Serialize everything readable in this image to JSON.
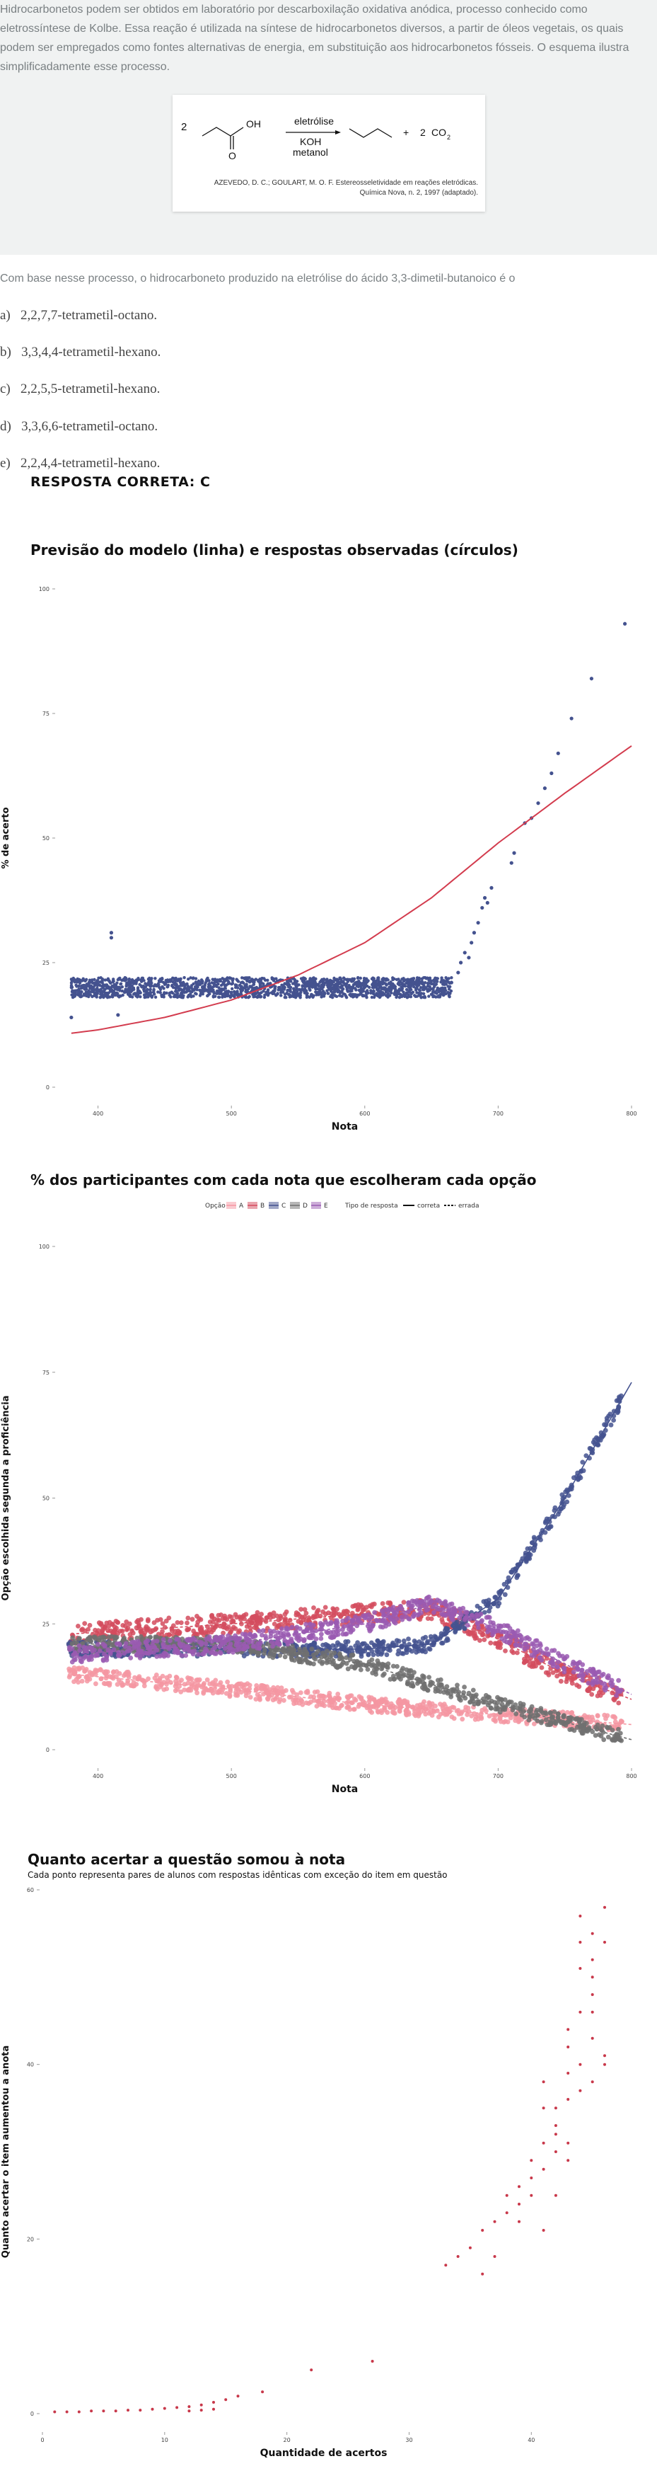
{
  "question": {
    "intro": "Hidrocarbonetos podem ser obtidos em laboratório por descarboxilação oxidativa anódica, processo conhecido como eletrossíntese de Kolbe. Essa reação é utilizada na síntese de hidrocarbonetos diversos, a partir de óleos vegetais, os quais podem ser empregados como fontes alternativas de energia, em substituição aos hidrocarbonetos fósseis. O esquema ilustra simplificadamente esse processo.",
    "scheme": {
      "coef_left": "2",
      "oh": "OH",
      "o": "O",
      "arrow_top": "eletrólise",
      "arrow_bottom_1": "KOH",
      "arrow_bottom_2": "metanol",
      "plus": "+",
      "coef_co2": "2",
      "co2": "CO",
      "co2_sub": "2",
      "citation_1": "AZEVEDO, D. C.; GOULART, M. O. F. Estereosseletividade em reações eletródicas.",
      "citation_2": "Química Nova, n. 2, 1997 (adaptado)."
    },
    "stem": "Com base nesse processo, o hidrocarboneto produzido na eletrólise do ácido 3,3-dimetil-butanoico é o",
    "options": [
      {
        "letter": "a)",
        "text": "2,2,7,7-tetrametil-octano."
      },
      {
        "letter": "b)",
        "text": "3,3,4,4-tetrametil-hexano."
      },
      {
        "letter": "c)",
        "text": "2,2,5,5-tetrametil-hexano."
      },
      {
        "letter": "d)",
        "text": "3,3,6,6-tetrametil-octano."
      },
      {
        "letter": "e)",
        "text": "2,2,4,4-tetrametil-hexano."
      }
    ],
    "answer": "RESPOSTA CORRETA: C"
  },
  "colors": {
    "A": "#f596a2",
    "B": "#d44c5e",
    "C": "#44528f",
    "D": "#707070",
    "E": "#9a5bb2",
    "model": "#d33c4e",
    "points": "#44528f",
    "chart3": "#c8384a"
  },
  "chart_data": [
    {
      "type": "scatter",
      "title": "Previsão do modelo (linha) e respostas observadas (círculos)",
      "xlabel": "Nota",
      "ylabel": "% de acerto",
      "xlim": [
        370,
        800
      ],
      "ylim": [
        0,
        100
      ],
      "xticks": [
        400,
        500,
        600,
        700,
        800
      ],
      "yticks": [
        0,
        25,
        50,
        75,
        100
      ],
      "series": [
        {
          "kind": "line",
          "points": [
            [
              370,
              10.5
            ],
            [
              400,
              11.5
            ],
            [
              450,
              14
            ],
            [
              500,
              17.5
            ],
            [
              550,
              22.5
            ],
            [
              600,
              29
            ],
            [
              650,
              38
            ],
            [
              700,
              49
            ],
            [
              750,
              59
            ],
            [
              800,
              68.5
            ]
          ]
        },
        {
          "kind": "points",
          "band": {
            "x": [
              380,
              665
            ],
            "level": 20,
            "spread": 4
          },
          "points": [
            [
              380,
              14
            ],
            [
              410,
              31
            ],
            [
              410,
              30
            ],
            [
              415,
              14.5
            ],
            [
              665,
              21
            ],
            [
              670,
              23
            ],
            [
              672,
              25
            ],
            [
              675,
              27
            ],
            [
              678,
              26
            ],
            [
              680,
              29
            ],
            [
              682,
              31
            ],
            [
              685,
              33
            ],
            [
              688,
              36
            ],
            [
              690,
              38
            ],
            [
              692,
              37
            ],
            [
              695,
              40
            ],
            [
              710,
              45
            ],
            [
              712,
              47
            ],
            [
              720,
              53
            ],
            [
              725,
              54
            ],
            [
              730,
              57
            ],
            [
              735,
              60
            ],
            [
              740,
              63
            ],
            [
              745,
              67
            ],
            [
              755,
              74
            ],
            [
              770,
              82
            ],
            [
              795,
              93
            ]
          ]
        }
      ]
    },
    {
      "type": "scatter",
      "title": "% dos participantes com cada nota que escolheram cada opção",
      "xlabel": "Nota",
      "ylabel": "Opção escolhida segunda a proficiência",
      "xlim": [
        370,
        800
      ],
      "ylim": [
        0,
        100
      ],
      "xticks": [
        400,
        500,
        600,
        700,
        800
      ],
      "yticks": [
        0,
        25,
        50,
        75,
        100
      ],
      "legend": {
        "option_label": "Opção",
        "options": [
          "A",
          "B",
          "C",
          "D",
          "E"
        ],
        "type_label": "Tipo de resposta",
        "types": [
          "correta",
          "errada"
        ],
        "position": "top"
      },
      "series": [
        {
          "name": "A",
          "points": [
            [
              380,
              15
            ],
            [
              500,
              12
            ],
            [
              600,
              9
            ],
            [
              700,
              7
            ],
            [
              800,
              5
            ]
          ]
        },
        {
          "name": "B",
          "points": [
            [
              380,
              23
            ],
            [
              500,
              25
            ],
            [
              600,
              27
            ],
            [
              650,
              28
            ],
            [
              700,
              22
            ],
            [
              750,
              15
            ],
            [
              800,
              10
            ]
          ]
        },
        {
          "name": "C",
          "points": [
            [
              380,
              20
            ],
            [
              500,
              20
            ],
            [
              600,
              20
            ],
            [
              650,
              21
            ],
            [
              700,
              30
            ],
            [
              750,
              50
            ],
            [
              800,
              73
            ]
          ]
        },
        {
          "name": "D",
          "points": [
            [
              380,
              21
            ],
            [
              500,
              21
            ],
            [
              600,
              17
            ],
            [
              700,
              9
            ],
            [
              800,
              2
            ]
          ]
        },
        {
          "name": "E",
          "points": [
            [
              380,
              19
            ],
            [
              500,
              21
            ],
            [
              600,
              25
            ],
            [
              650,
              29
            ],
            [
              700,
              24
            ],
            [
              750,
              17
            ],
            [
              800,
              11
            ]
          ]
        }
      ]
    },
    {
      "type": "scatter",
      "title": "Quanto acertar a questão somou à nota",
      "subtitle": "Cada ponto representa pares de alunos com respostas idênticas com exceção do item em questão",
      "xlabel": "Quantidade de acertos",
      "ylabel": "Quanto acertar o item aumentou a anota",
      "xlim": [
        0,
        46
      ],
      "ylim": [
        0,
        60
      ],
      "xticks": [
        0,
        10,
        20,
        30,
        40
      ],
      "yticks": [
        0,
        20,
        40,
        60
      ],
      "points": [
        [
          1,
          0.2
        ],
        [
          2,
          0.2
        ],
        [
          3,
          0.2
        ],
        [
          4,
          0.3
        ],
        [
          5,
          0.3
        ],
        [
          6,
          0.3
        ],
        [
          7,
          0.4
        ],
        [
          8,
          0.4
        ],
        [
          9,
          0.5
        ],
        [
          10,
          0.6
        ],
        [
          11,
          0.7
        ],
        [
          12,
          0.8
        ],
        [
          12,
          0.3
        ],
        [
          13,
          1
        ],
        [
          13,
          0.4
        ],
        [
          14,
          1.3
        ],
        [
          14,
          0.5
        ],
        [
          15,
          1.6
        ],
        [
          16,
          2
        ],
        [
          18,
          2.5
        ],
        [
          22,
          5
        ],
        [
          27,
          6
        ],
        [
          33,
          17
        ],
        [
          34,
          18
        ],
        [
          35,
          19
        ],
        [
          36,
          21
        ],
        [
          36,
          16
        ],
        [
          37,
          22
        ],
        [
          37,
          18
        ],
        [
          38,
          23
        ],
        [
          38,
          25
        ],
        [
          39,
          24
        ],
        [
          39,
          22
        ],
        [
          39,
          26
        ],
        [
          40,
          27
        ],
        [
          40,
          29
        ],
        [
          40,
          25
        ],
        [
          41,
          28
        ],
        [
          41,
          21
        ],
        [
          41,
          31
        ],
        [
          41,
          35
        ],
        [
          41,
          38
        ],
        [
          42,
          30
        ],
        [
          42,
          32
        ],
        [
          42,
          25
        ],
        [
          42,
          33
        ],
        [
          42,
          35
        ],
        [
          43,
          31
        ],
        [
          43,
          36
        ],
        [
          43,
          39
        ],
        [
          43,
          42
        ],
        [
          43,
          44
        ],
        [
          43,
          29
        ],
        [
          44,
          37
        ],
        [
          44,
          40
        ],
        [
          44,
          46
        ],
        [
          44,
          51
        ],
        [
          44,
          54
        ],
        [
          44,
          57
        ],
        [
          45,
          43
        ],
        [
          45,
          48
        ],
        [
          45,
          52
        ],
        [
          45,
          55
        ],
        [
          45,
          50
        ],
        [
          45,
          46
        ],
        [
          45,
          38
        ],
        [
          46,
          40
        ],
        [
          46,
          58
        ],
        [
          46,
          54
        ],
        [
          46,
          41
        ]
      ]
    }
  ]
}
